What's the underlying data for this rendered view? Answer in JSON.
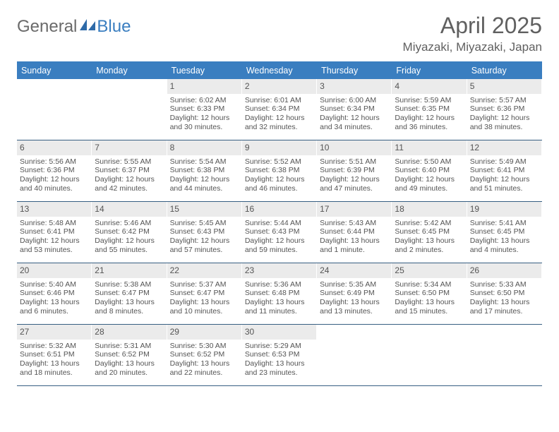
{
  "brand": {
    "part1": "General",
    "part2": "Blue"
  },
  "title": "April 2025",
  "location": "Miyazaki, Miyazaki, Japan",
  "colors": {
    "header_bg": "#3a7ec0",
    "header_text": "#ffffff",
    "week_border": "#375f82",
    "daynum_bg": "#ebebeb",
    "text": "#545454",
    "page_bg": "#ffffff"
  },
  "typography": {
    "title_fontsize": 32,
    "location_fontsize": 17,
    "dow_fontsize": 12.5,
    "daynum_fontsize": 12,
    "cell_fontsize": 10.5
  },
  "layout": {
    "cols": 7,
    "rows": 5,
    "first_day_col": 2
  },
  "dow": [
    "Sunday",
    "Monday",
    "Tuesday",
    "Wednesday",
    "Thursday",
    "Friday",
    "Saturday"
  ],
  "days": [
    {
      "n": 1,
      "sr": "6:02 AM",
      "ss": "6:33 PM",
      "dl": "12 hours and 30 minutes."
    },
    {
      "n": 2,
      "sr": "6:01 AM",
      "ss": "6:34 PM",
      "dl": "12 hours and 32 minutes."
    },
    {
      "n": 3,
      "sr": "6:00 AM",
      "ss": "6:34 PM",
      "dl": "12 hours and 34 minutes."
    },
    {
      "n": 4,
      "sr": "5:59 AM",
      "ss": "6:35 PM",
      "dl": "12 hours and 36 minutes."
    },
    {
      "n": 5,
      "sr": "5:57 AM",
      "ss": "6:36 PM",
      "dl": "12 hours and 38 minutes."
    },
    {
      "n": 6,
      "sr": "5:56 AM",
      "ss": "6:36 PM",
      "dl": "12 hours and 40 minutes."
    },
    {
      "n": 7,
      "sr": "5:55 AM",
      "ss": "6:37 PM",
      "dl": "12 hours and 42 minutes."
    },
    {
      "n": 8,
      "sr": "5:54 AM",
      "ss": "6:38 PM",
      "dl": "12 hours and 44 minutes."
    },
    {
      "n": 9,
      "sr": "5:52 AM",
      "ss": "6:38 PM",
      "dl": "12 hours and 46 minutes."
    },
    {
      "n": 10,
      "sr": "5:51 AM",
      "ss": "6:39 PM",
      "dl": "12 hours and 47 minutes."
    },
    {
      "n": 11,
      "sr": "5:50 AM",
      "ss": "6:40 PM",
      "dl": "12 hours and 49 minutes."
    },
    {
      "n": 12,
      "sr": "5:49 AM",
      "ss": "6:41 PM",
      "dl": "12 hours and 51 minutes."
    },
    {
      "n": 13,
      "sr": "5:48 AM",
      "ss": "6:41 PM",
      "dl": "12 hours and 53 minutes."
    },
    {
      "n": 14,
      "sr": "5:46 AM",
      "ss": "6:42 PM",
      "dl": "12 hours and 55 minutes."
    },
    {
      "n": 15,
      "sr": "5:45 AM",
      "ss": "6:43 PM",
      "dl": "12 hours and 57 minutes."
    },
    {
      "n": 16,
      "sr": "5:44 AM",
      "ss": "6:43 PM",
      "dl": "12 hours and 59 minutes."
    },
    {
      "n": 17,
      "sr": "5:43 AM",
      "ss": "6:44 PM",
      "dl": "13 hours and 1 minute."
    },
    {
      "n": 18,
      "sr": "5:42 AM",
      "ss": "6:45 PM",
      "dl": "13 hours and 2 minutes."
    },
    {
      "n": 19,
      "sr": "5:41 AM",
      "ss": "6:45 PM",
      "dl": "13 hours and 4 minutes."
    },
    {
      "n": 20,
      "sr": "5:40 AM",
      "ss": "6:46 PM",
      "dl": "13 hours and 6 minutes."
    },
    {
      "n": 21,
      "sr": "5:38 AM",
      "ss": "6:47 PM",
      "dl": "13 hours and 8 minutes."
    },
    {
      "n": 22,
      "sr": "5:37 AM",
      "ss": "6:47 PM",
      "dl": "13 hours and 10 minutes."
    },
    {
      "n": 23,
      "sr": "5:36 AM",
      "ss": "6:48 PM",
      "dl": "13 hours and 11 minutes."
    },
    {
      "n": 24,
      "sr": "5:35 AM",
      "ss": "6:49 PM",
      "dl": "13 hours and 13 minutes."
    },
    {
      "n": 25,
      "sr": "5:34 AM",
      "ss": "6:50 PM",
      "dl": "13 hours and 15 minutes."
    },
    {
      "n": 26,
      "sr": "5:33 AM",
      "ss": "6:50 PM",
      "dl": "13 hours and 17 minutes."
    },
    {
      "n": 27,
      "sr": "5:32 AM",
      "ss": "6:51 PM",
      "dl": "13 hours and 18 minutes."
    },
    {
      "n": 28,
      "sr": "5:31 AM",
      "ss": "6:52 PM",
      "dl": "13 hours and 20 minutes."
    },
    {
      "n": 29,
      "sr": "5:30 AM",
      "ss": "6:52 PM",
      "dl": "13 hours and 22 minutes."
    },
    {
      "n": 30,
      "sr": "5:29 AM",
      "ss": "6:53 PM",
      "dl": "13 hours and 23 minutes."
    }
  ],
  "labels": {
    "sunrise": "Sunrise:",
    "sunset": "Sunset:",
    "daylight": "Daylight:"
  }
}
